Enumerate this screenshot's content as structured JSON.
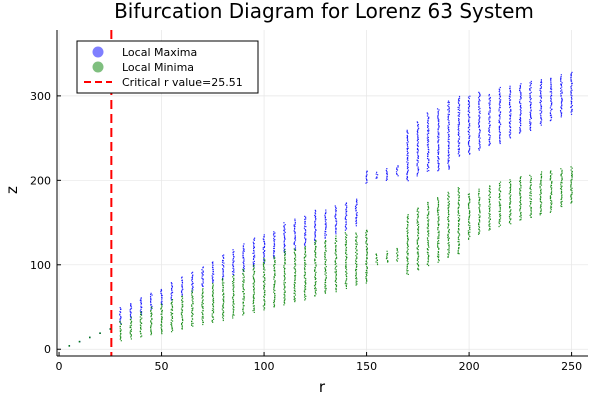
{
  "chart_data": {
    "type": "scatter",
    "title": "Bifurcation Diagram for Lorenz 63 System",
    "xlabel": "r",
    "ylabel": "z",
    "xlim": [
      -1,
      258
    ],
    "ylim": [
      -8,
      378
    ],
    "xticks": [
      0,
      50,
      100,
      150,
      200,
      250
    ],
    "yticks": [
      0,
      100,
      200,
      300
    ],
    "grid": true,
    "legend_position": "top-left",
    "reference_line": {
      "name": "Critical r value=25.51",
      "x": 25.51,
      "color": "#ff0000",
      "style": "dashed"
    },
    "series": [
      {
        "name": "Local Maxima",
        "color": "#0000ff",
        "r": [
          5,
          10,
          15,
          20,
          25,
          30,
          35,
          40,
          45,
          50,
          55,
          60,
          65,
          70,
          75,
          80,
          85,
          90,
          95,
          100,
          105,
          110,
          115,
          120,
          125,
          130,
          135,
          140,
          145,
          150,
          155,
          160,
          165,
          170,
          175,
          180,
          185,
          190,
          195,
          200,
          205,
          210,
          215,
          220,
          225,
          230,
          235,
          240,
          245,
          250
        ],
        "z_low": [
          4,
          9,
          14,
          19,
          24,
          30,
          36,
          41,
          47,
          52,
          57,
          63,
          68,
          73,
          78,
          82,
          87,
          92,
          97,
          102,
          107,
          112,
          117,
          122,
          126,
          131,
          136,
          141,
          146,
          196,
          201,
          199,
          205,
          199,
          205,
          210,
          210,
          212,
          228,
          230,
          235,
          240,
          243,
          250,
          255,
          258,
          265,
          270,
          275,
          278
        ],
        "z_high": [
          4,
          9,
          14,
          19,
          24,
          50,
          55,
          62,
          67,
          72,
          80,
          86,
          92,
          98,
          104,
          112,
          118,
          125,
          132,
          136,
          140,
          150,
          154,
          158,
          165,
          165,
          170,
          174,
          178,
          212,
          210,
          214,
          218,
          260,
          270,
          280,
          285,
          295,
          300,
          300,
          305,
          302,
          310,
          312,
          315,
          318,
          320,
          322,
          325,
          329
        ]
      },
      {
        "name": "Local Minima",
        "color": "#008000",
        "r": [
          5,
          10,
          15,
          20,
          25,
          30,
          35,
          40,
          45,
          50,
          55,
          60,
          65,
          70,
          75,
          80,
          85,
          90,
          95,
          100,
          105,
          110,
          115,
          120,
          125,
          130,
          135,
          140,
          145,
          150,
          155,
          160,
          165,
          170,
          175,
          180,
          185,
          190,
          195,
          200,
          205,
          210,
          215,
          220,
          225,
          230,
          235,
          240,
          245,
          250
        ],
        "z_low": [
          4,
          9,
          14,
          19,
          24,
          10,
          12,
          14,
          16,
          18,
          20,
          23,
          26,
          29,
          31,
          34,
          37,
          40,
          43,
          46,
          49,
          52,
          55,
          58,
          62,
          65,
          68,
          72,
          75,
          78,
          100,
          102,
          104,
          88,
          93,
          98,
          103,
          108,
          112,
          130,
          135,
          140,
          145,
          148,
          152,
          155,
          158,
          162,
          168,
          172
        ],
        "z_high": [
          4,
          9,
          14,
          19,
          24,
          34,
          38,
          45,
          50,
          54,
          60,
          64,
          70,
          72,
          78,
          84,
          88,
          95,
          100,
          108,
          110,
          118,
          120,
          122,
          130,
          130,
          134,
          138,
          138,
          142,
          114,
          116,
          120,
          160,
          168,
          175,
          180,
          186,
          192,
          185,
          190,
          194,
          198,
          201,
          205,
          206,
          210,
          212,
          214,
          216
        ]
      }
    ]
  }
}
